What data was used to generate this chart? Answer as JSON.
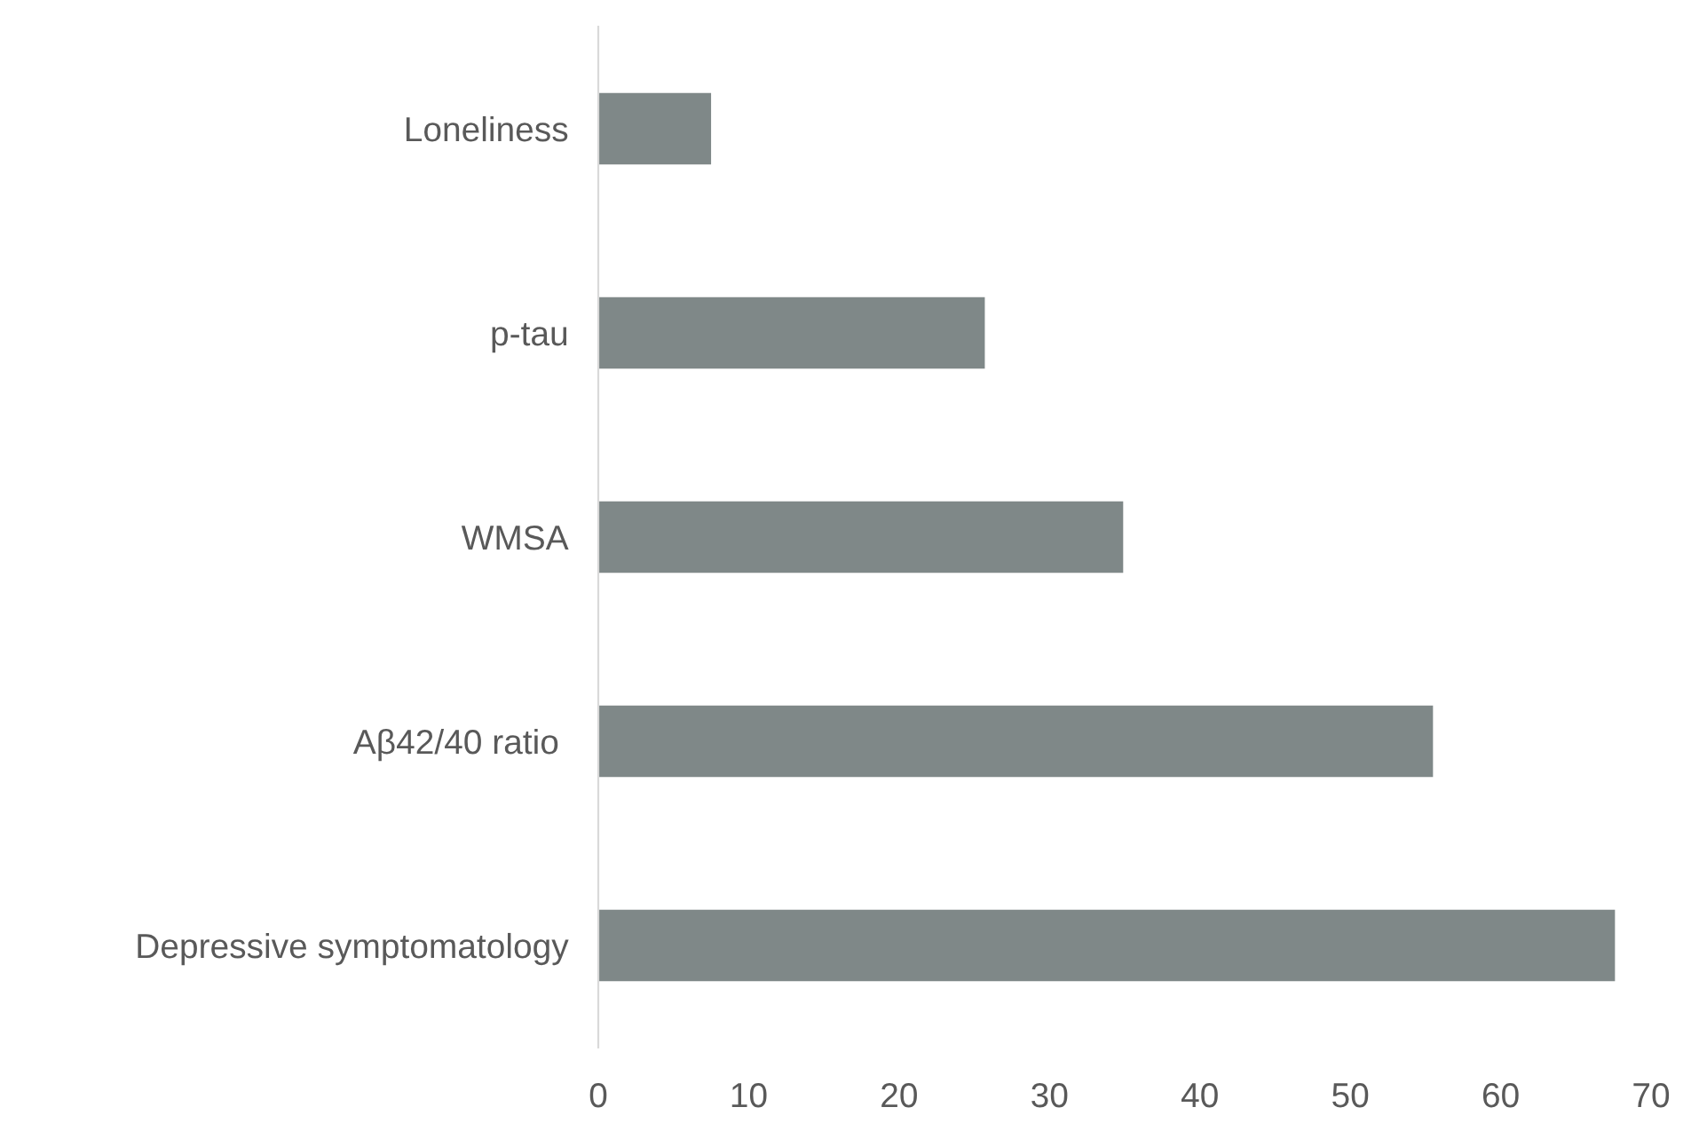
{
  "chart_data": {
    "type": "bar",
    "orientation": "horizontal",
    "categories": [
      "Loneliness",
      "p-tau",
      "WMSA",
      "Aβ42/40 ratio ",
      "Depressive symptomatology"
    ],
    "values": [
      7.5,
      25.7,
      34.9,
      55.5,
      67.6
    ],
    "color": "#7f8888",
    "xlim": [
      0,
      70
    ],
    "xticks": [
      0,
      10,
      20,
      30,
      40,
      50,
      60,
      70
    ],
    "grid": false
  }
}
